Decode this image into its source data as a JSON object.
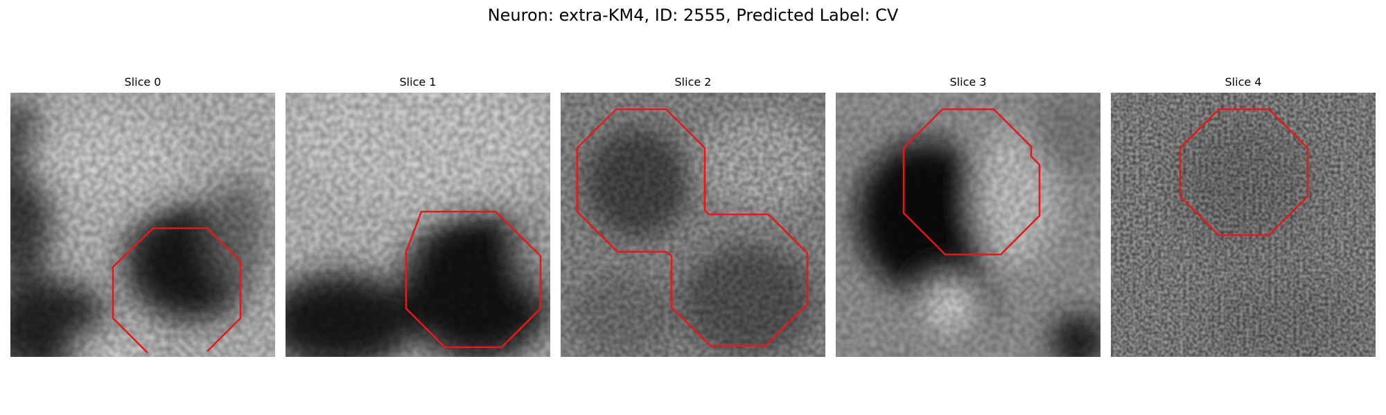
{
  "figure": {
    "title": "Neuron: extra-KM4, ID: 2555, Predicted Label: CV"
  },
  "colors": {
    "contour": "#e31a1c",
    "background": "#ffffff",
    "colormap": "grayscale"
  },
  "panels": [
    {
      "title": "Slice 0"
    },
    {
      "title": "Slice 1"
    },
    {
      "title": "Slice 2"
    },
    {
      "title": "Slice 3"
    },
    {
      "title": "Slice 4"
    }
  ]
}
